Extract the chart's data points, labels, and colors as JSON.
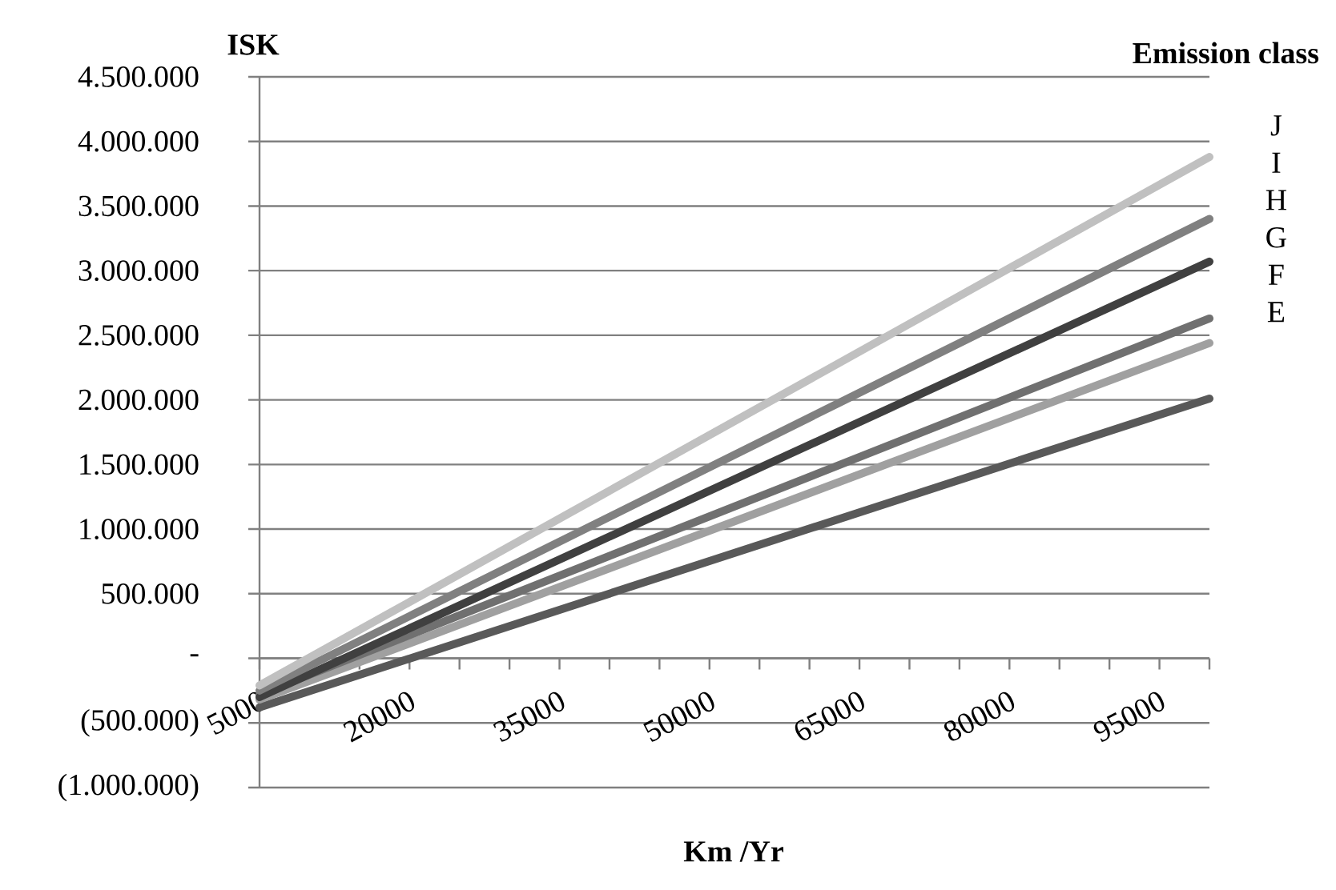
{
  "chart_data": {
    "type": "line",
    "ylabel": "ISK",
    "xlabel": "Km /Yr",
    "legend_title": "Emission class",
    "legend": "right",
    "grid": "y",
    "marker": "none",
    "line_style": "solid",
    "x": [
      5000,
      100000
    ],
    "xlim": [
      5000,
      100000
    ],
    "xticks": [
      5000,
      {
        "value": 10000,
        "label": null
      },
      {
        "value": 15000,
        "label": null
      },
      20000,
      {
        "value": 25000,
        "label": null
      },
      {
        "value": 30000,
        "label": null
      },
      35000,
      {
        "value": 40000,
        "label": null
      },
      {
        "value": 45000,
        "label": null
      },
      50000,
      {
        "value": 55000,
        "label": null
      },
      {
        "value": 60000,
        "label": null
      },
      65000,
      {
        "value": 70000,
        "label": null
      },
      {
        "value": 75000,
        "label": null
      },
      80000,
      {
        "value": 85000,
        "label": null
      },
      {
        "value": 90000,
        "label": null
      },
      95000,
      {
        "value": 100000,
        "label": null
      }
    ],
    "ylim": [
      -1000000,
      4500000
    ],
    "yticks": [
      {
        "value": -1000000,
        "label": "(1.000.000)"
      },
      {
        "value": -500000,
        "label": "(500.000)"
      },
      {
        "value": 0,
        "label": "-"
      },
      {
        "value": 500000,
        "label": "500.000"
      },
      {
        "value": 1000000,
        "label": "1.000.000"
      },
      {
        "value": 1500000,
        "label": "1.500.000"
      },
      {
        "value": 2000000,
        "label": "2.000.000"
      },
      {
        "value": 2500000,
        "label": "2.500.000"
      },
      {
        "value": 3000000,
        "label": "3.000.000"
      },
      {
        "value": 3500000,
        "label": "3.500.000"
      },
      {
        "value": 4000000,
        "label": "4.000.000"
      },
      {
        "value": 4500000,
        "label": "4.500.000"
      }
    ],
    "series": [
      {
        "name": "E",
        "color": "#595959",
        "values": [
          -380000,
          2010000
        ]
      },
      {
        "name": "F",
        "color": "#a0a0a0",
        "values": [
          -320000,
          2440000
        ]
      },
      {
        "name": "G",
        "color": "#707070",
        "values": [
          -280000,
          2630000
        ]
      },
      {
        "name": "H",
        "color": "#404040",
        "values": [
          -300000,
          3070000
        ]
      },
      {
        "name": "I",
        "color": "#808080",
        "values": [
          -250000,
          3400000
        ]
      },
      {
        "name": "J",
        "color": "#c0c0c0",
        "values": [
          -210000,
          3880000
        ]
      }
    ]
  }
}
